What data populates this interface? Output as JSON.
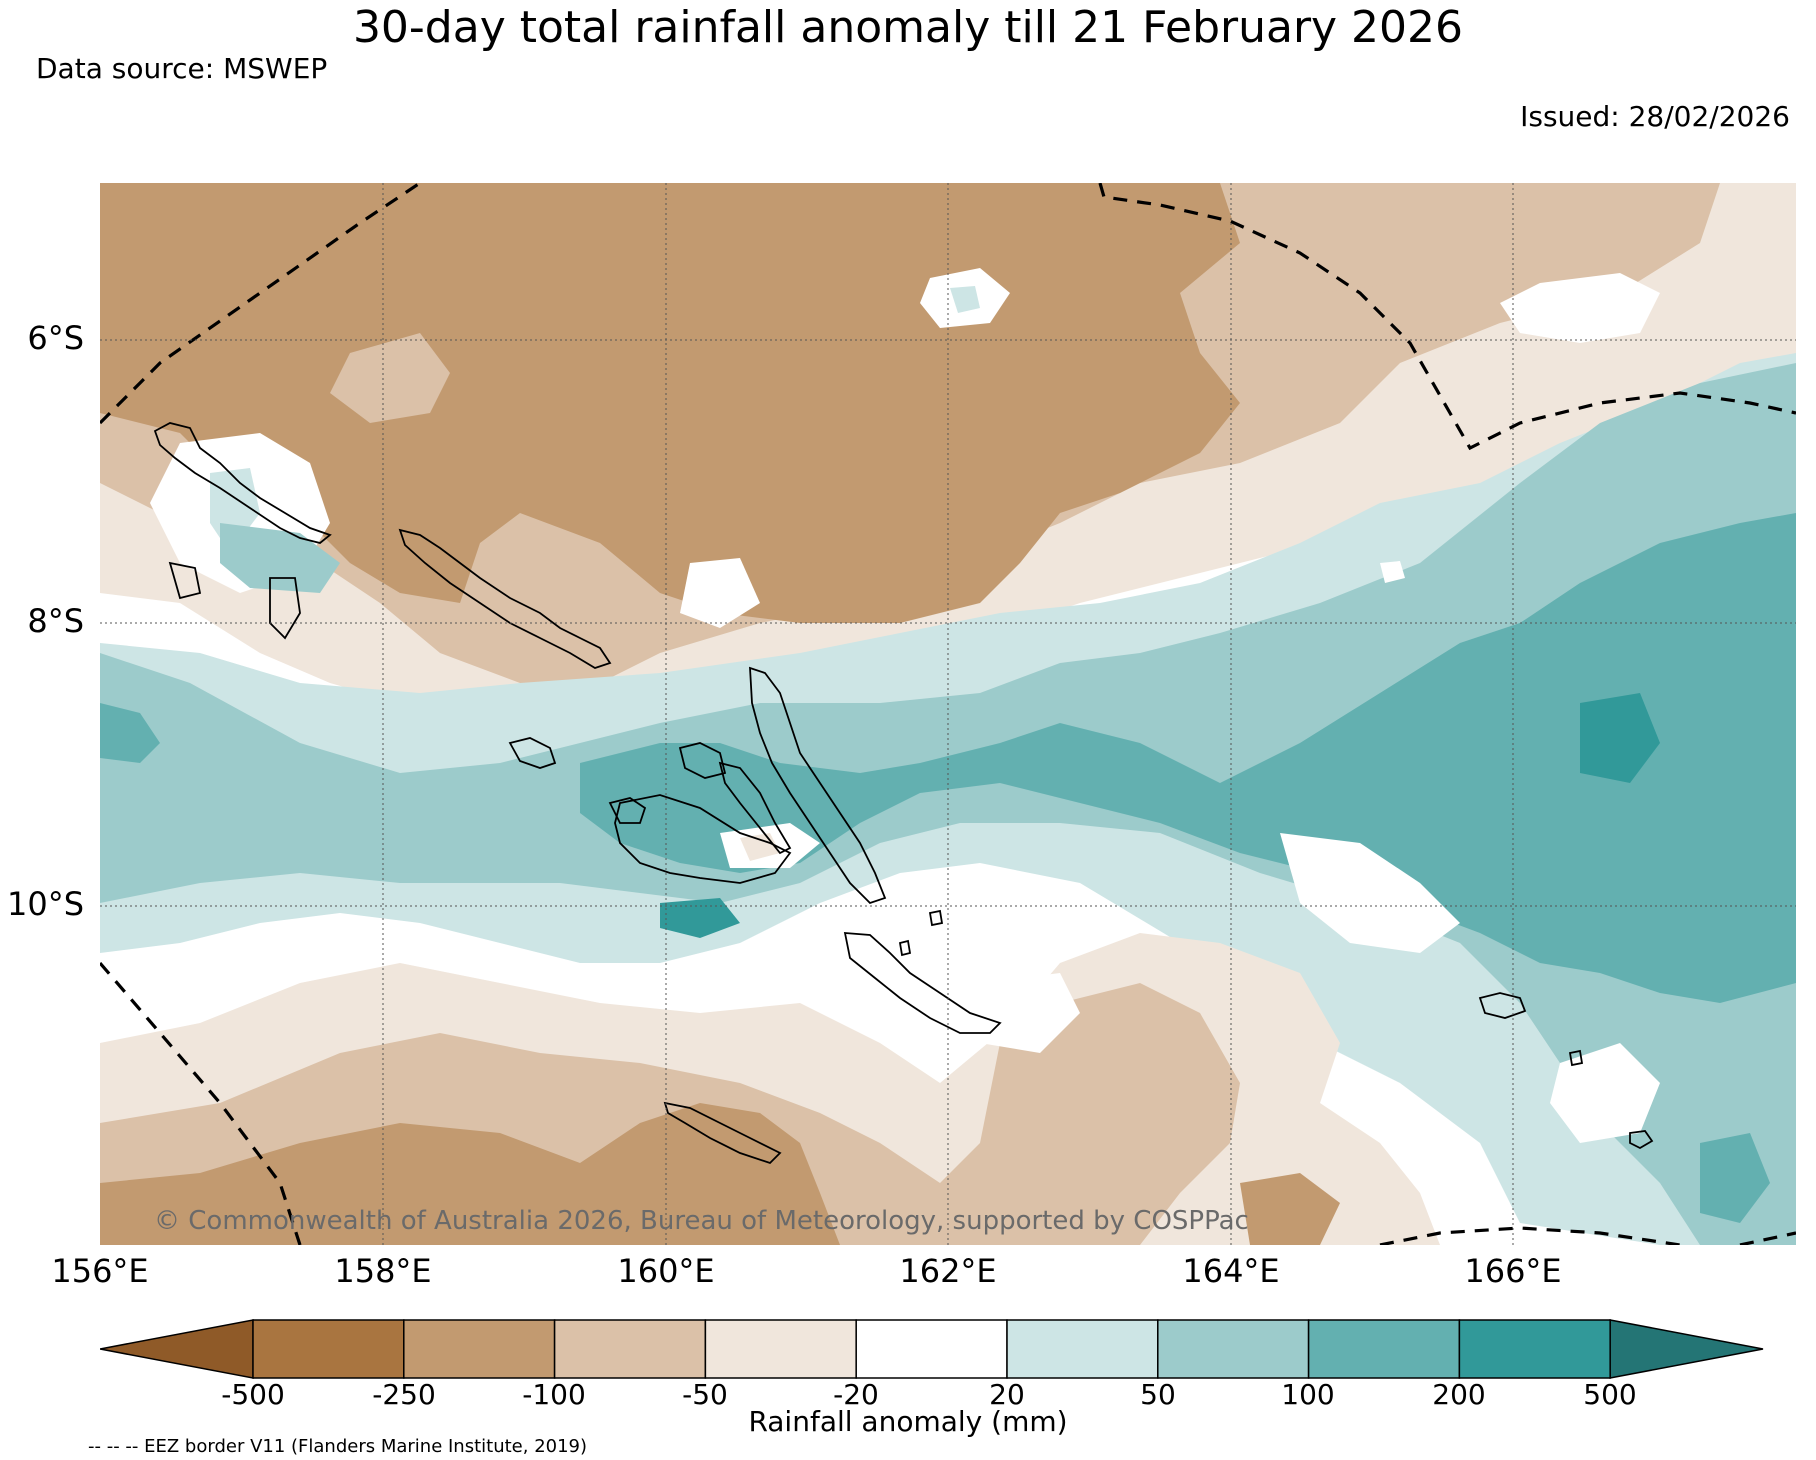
{
  "title": "30-day total rainfall anomaly till 21 February 2026",
  "data_source": "Data source: MSWEP",
  "issued": "Issued: 28/02/2026",
  "copyright": "© Commonwealth of Australia 2026, Bureau of Meteorology, supported by COSPPac",
  "map": {
    "lon_range": [
      156,
      168
    ],
    "lat_range": [
      -4.9,
      -12.4
    ],
    "lon_ticks": [
      "156°E",
      "158°E",
      "160°E",
      "162°E",
      "164°E",
      "166°E"
    ],
    "lat_ticks": [
      "6°S",
      "8°S",
      "10°S"
    ]
  },
  "colorbar": {
    "title": "Rainfall anomaly (mm)",
    "tick_labels": [
      "-500",
      "-250",
      "-100",
      "-50",
      "-20",
      "20",
      "50",
      "100",
      "200",
      "500"
    ],
    "colors": [
      "#8f5a28",
      "#a97540",
      "#c29a70",
      "#dbc1a8",
      "#f0e6dc",
      "#ffffff",
      "#cde5e5",
      "#9ccbcb",
      "#63b0b0",
      "#319999",
      "#247575"
    ]
  },
  "eez_note": "-- -- -- EEZ border V11 (Flanders Marine Institute, 2019)"
}
